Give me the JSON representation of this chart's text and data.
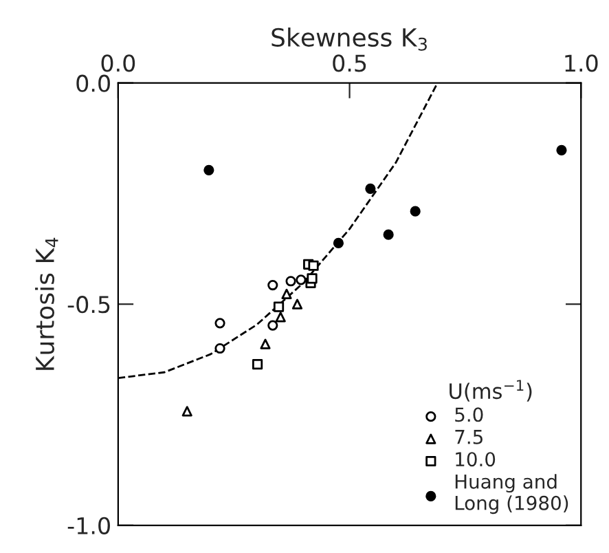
{
  "chart_data": {
    "type": "scatter",
    "xlabel": "Skewness K$_{3}$",
    "ylabel": "Kurtosis K$_{4}$",
    "legend_title": "U(ms$^{−1}$)",
    "xlim": [
      0,
      1
    ],
    "ylim": [
      -1,
      0
    ],
    "xticks": [
      {
        "value": 0,
        "label": "0.0"
      },
      0.5,
      {
        "value": 1,
        "label": "1.0"
      }
    ],
    "yticks": [
      {
        "value": -1,
        "label": "-1.0"
      },
      -0.5,
      {
        "value": 0,
        "label": "0.0"
      }
    ],
    "legend": "bottom right",
    "grid": false,
    "series": [
      {
        "name": "5.0",
        "color": "#ffffff",
        "marker": "circle",
        "x": [
          0.22,
          0.22,
          0.334,
          0.373,
          0.334,
          0.395
        ],
        "values": [
          -0.543,
          -0.6,
          -0.457,
          -0.448,
          -0.548,
          -0.445
        ]
      },
      {
        "name": "7.5",
        "color": "#ffffff",
        "marker": "triangle",
        "x": [
          0.149,
          0.318,
          0.387,
          0.351,
          0.364
        ],
        "values": [
          -0.742,
          -0.59,
          -0.5,
          -0.529,
          -0.477
        ]
      },
      {
        "name": "10.0",
        "color": "#ffffff",
        "marker": "square",
        "x": [
          0.301,
          0.347,
          0.411,
          0.422,
          0.416,
          0.419
        ],
        "values": [
          -0.636,
          -0.506,
          -0.41,
          -0.413,
          -0.452,
          -0.442
        ]
      },
      {
        "name": "Huang and\nLong (1980)",
        "color": "#000000",
        "marker": "circle",
        "x": [
          0.196,
          0.476,
          0.545,
          0.584,
          0.642,
          0.958
        ],
        "values": [
          -0.197,
          -0.362,
          -0.239,
          -0.343,
          -0.29,
          -0.152
        ]
      },
      {
        "type": "line",
        "color": "#000000",
        "line_style": "dashed",
        "marker": "none",
        "x": [
          0,
          0.1,
          0.2,
          0.3,
          0.4,
          0.5,
          0.6,
          0.69
        ],
        "values": [
          -0.667,
          -0.654,
          -0.613,
          -0.546,
          -0.452,
          -0.33,
          -0.18,
          0.0
        ]
      }
    ]
  }
}
